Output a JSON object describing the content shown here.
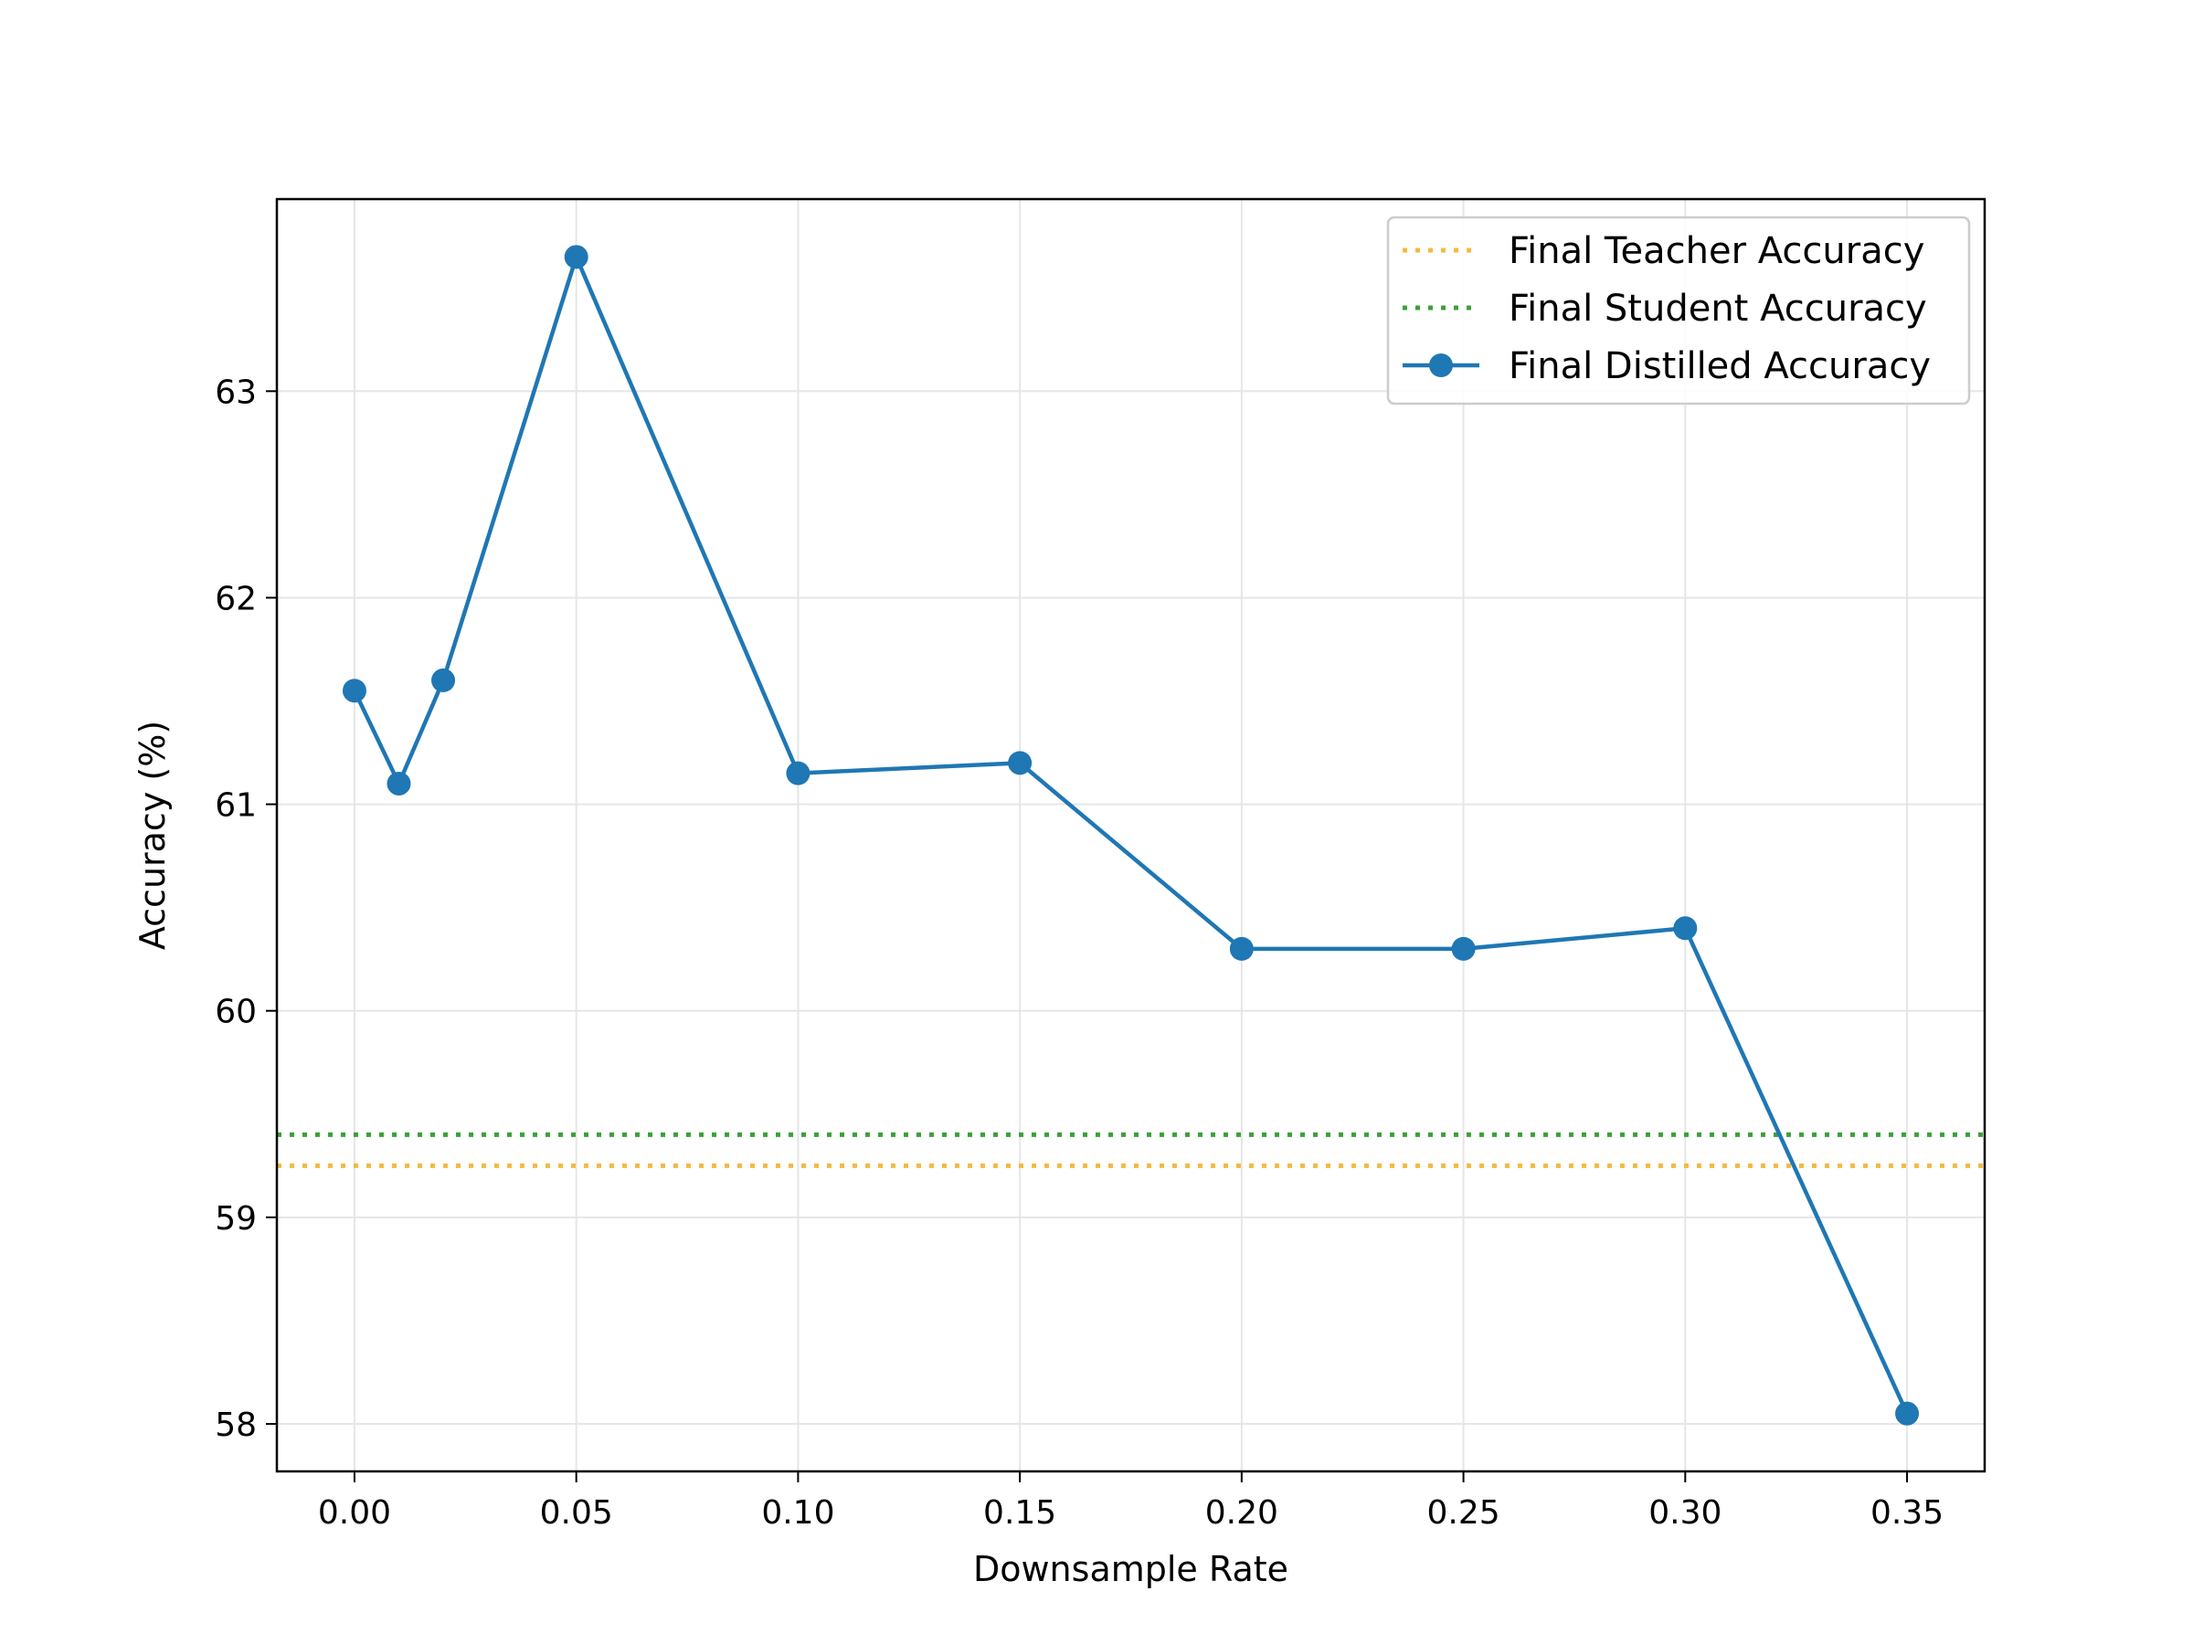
{
  "chart_data": {
    "type": "line",
    "title": "",
    "xlabel": "Downsample Rate",
    "ylabel": "Accuracy (%)",
    "xlim": [
      -0.0175,
      0.3675
    ],
    "ylim": [
      57.77,
      63.93
    ],
    "xticks": [
      0.0,
      0.05,
      0.1,
      0.15,
      0.2,
      0.25,
      0.3,
      0.35
    ],
    "xtick_labels": [
      "0.00",
      "0.05",
      "0.10",
      "0.15",
      "0.20",
      "0.25",
      "0.30",
      "0.35"
    ],
    "yticks": [
      58,
      59,
      60,
      61,
      62,
      63
    ],
    "ytick_labels": [
      "58",
      "59",
      "60",
      "61",
      "62",
      "63"
    ],
    "grid": true,
    "legend_position": "top-right",
    "series": [
      {
        "name": "Final Teacher Accuracy",
        "kind": "hline",
        "style": "dotted",
        "color": "#f5b942",
        "y": 59.25
      },
      {
        "name": "Final Student Accuracy",
        "kind": "hline",
        "style": "dotted",
        "color": "#3ca03c",
        "y": 59.4
      },
      {
        "name": "Final Distilled Accuracy",
        "kind": "line",
        "marker": "circle",
        "color": "#1f77b4",
        "x": [
          0.0,
          0.01,
          0.02,
          0.05,
          0.1,
          0.15,
          0.2,
          0.25,
          0.3,
          0.35
        ],
        "y": [
          61.55,
          61.1,
          61.6,
          63.65,
          61.15,
          61.2,
          60.3,
          60.3,
          60.4,
          58.05
        ]
      }
    ]
  }
}
